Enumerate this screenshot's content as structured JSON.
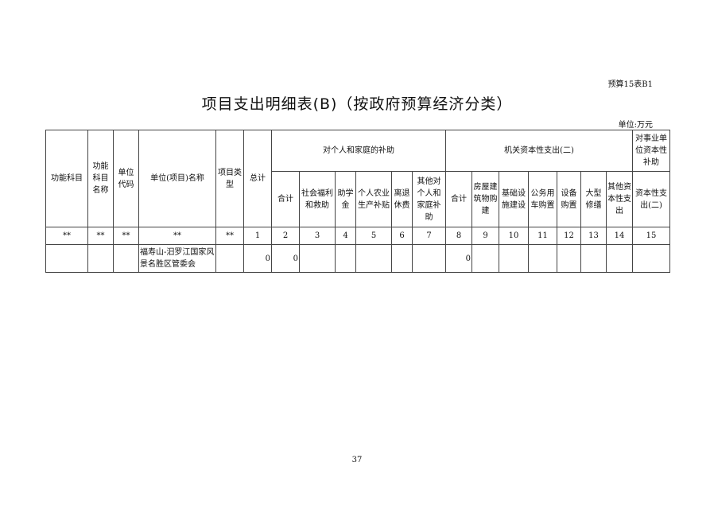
{
  "doc_code": "预算15表B1",
  "title": "项目支出明细表(B)（按政府预算经济分类）",
  "unit": "单位:万元",
  "headers": {
    "func_subject": "功能科目",
    "func_name": "功能科目名称",
    "unit_code": "单位代码",
    "unit_name": "单位(项目)名称",
    "project_type": "项目类型",
    "total": "总计",
    "group1": "对个人和家庭的补助",
    "group2": "机关资本性支出(二)",
    "group3": "对事业单位资本性补助",
    "sub": [
      "合计",
      "社会福利和救助",
      "助学金",
      "个人农业生产补贴",
      "离退休费",
      "其他对个人和家庭补助",
      "合计",
      "房屋建筑物购建",
      "基础设施建设",
      "公务用车购置",
      "设备购置",
      "大型修缮",
      "其他资本性支出",
      "资本性支出(二)"
    ]
  },
  "index_row": [
    "**",
    "**",
    "**",
    "**",
    "**",
    "1",
    "2",
    "3",
    "4",
    "5",
    "6",
    "7",
    "8",
    "9",
    "10",
    "11",
    "12",
    "13",
    "14",
    "15"
  ],
  "rows": [
    {
      "cells": [
        "",
        "",
        "",
        "福寿山-汨罗江国家风景名胜区管委会",
        "",
        "0",
        "0",
        "",
        "",
        "",
        "",
        "",
        "0",
        "",
        "",
        "",
        "",
        "",
        "",
        ""
      ]
    }
  ],
  "page_number": "37"
}
